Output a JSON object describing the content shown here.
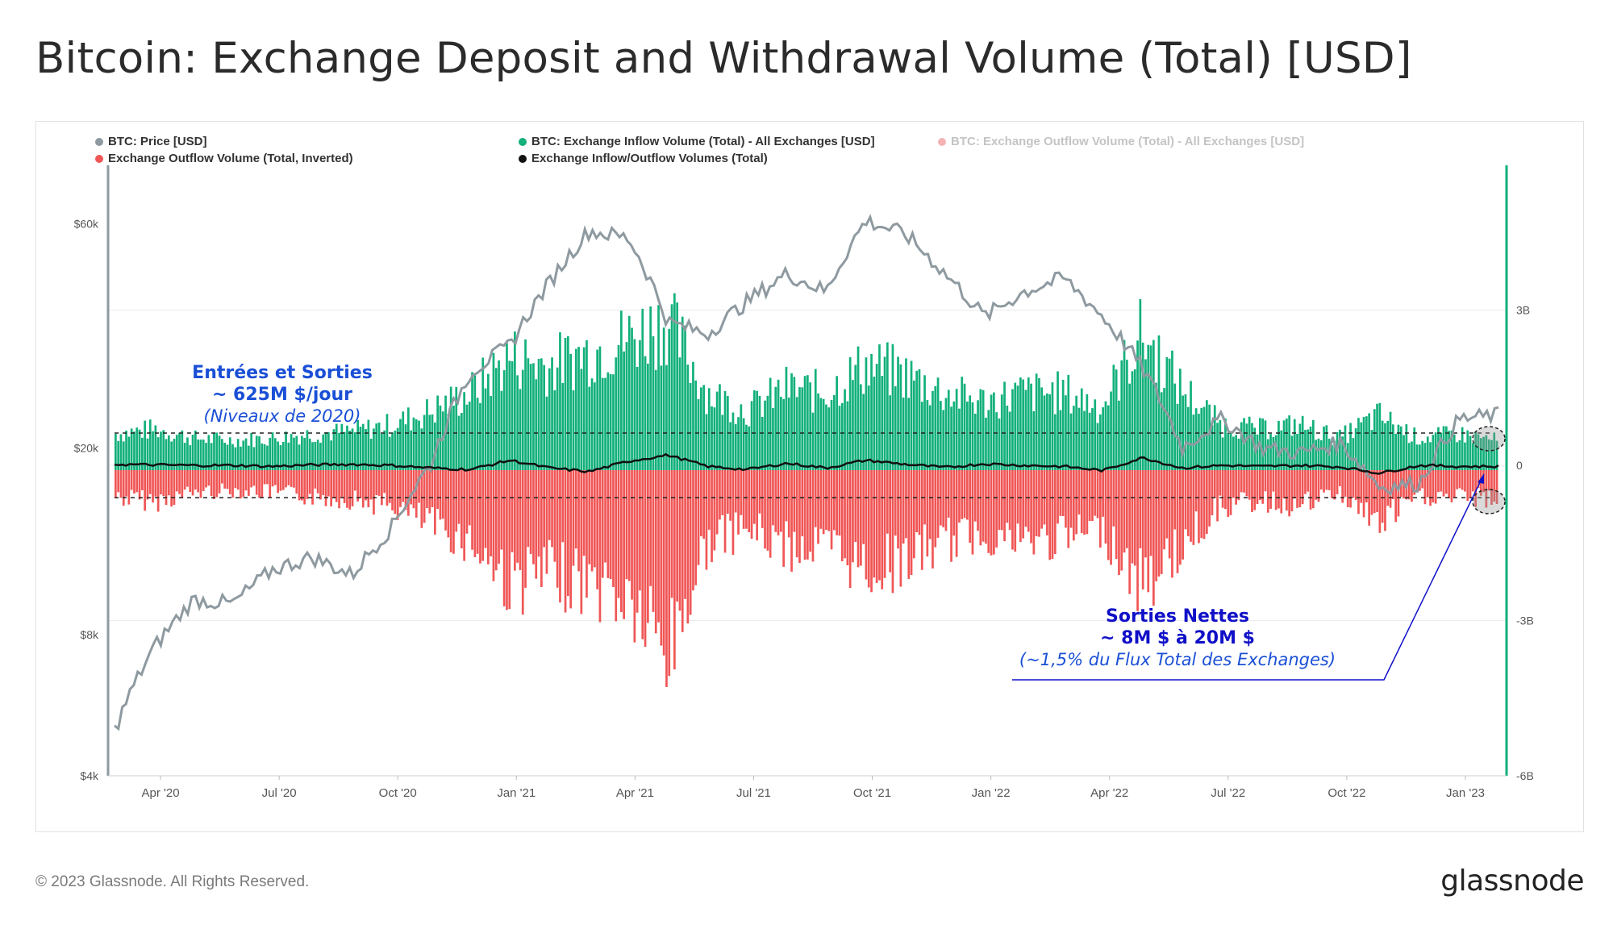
{
  "title": "Bitcoin: Exchange Deposit and Withdrawal Volume (Total) [USD]",
  "legend": [
    {
      "label": "BTC: Price [USD]",
      "color": "#8e9aa0",
      "faded": false
    },
    {
      "label": "BTC: Exchange Inflow Volume (Total) - All Exchanges [USD]",
      "color": "#12b07a",
      "faded": false
    },
    {
      "label": "BTC: Exchange Outflow Volume (Total) - All Exchanges [USD]",
      "color": "#f26d6d",
      "faded": true
    },
    {
      "label": "Exchange Outflow Volume (Total, Inverted)",
      "color": "#f05656",
      "faded": false
    },
    {
      "label": "Exchange Inflow/Outflow Volumes (Total)",
      "color": "#111111",
      "faded": false
    }
  ],
  "annotations": {
    "left": {
      "line1": "Entrées et Sorties",
      "line2": "~ 625M $/jour",
      "line3": "(Niveaux de 2020)"
    },
    "right": {
      "line1": "Sorties Nettes",
      "line2": "~ 8M $ à 20M $",
      "line3": "(~1,5% du Flux Total des Exchanges)"
    }
  },
  "footer": {
    "copyright": "© 2023 Glassnode. All Rights Reserved.",
    "brand": "glassnode"
  },
  "colors": {
    "price": "#8e9aa0",
    "inflow": "#12b07a",
    "outflow": "#f05656",
    "net": "#111111",
    "annotation": "#1a4fd6",
    "annotation_dark": "#1010c8",
    "right_axis": "#12b07a"
  },
  "chart_data": {
    "type": "bar",
    "title": "Bitcoin: Exchange Deposit and Withdrawal Volume (Total) [USD]",
    "x_ticks": [
      "Apr '20",
      "Jul '20",
      "Oct '20",
      "Jan '21",
      "Apr '21",
      "Jul '21",
      "Oct '21",
      "Jan '22",
      "Apr '22",
      "Jul '22",
      "Oct '22",
      "Jan '23"
    ],
    "left_axis": {
      "scale": "log",
      "ticks": [
        "$4k",
        "$8k",
        "$20k",
        "$60k"
      ],
      "tick_values": [
        4000,
        8000,
        20000,
        60000
      ],
      "range": [
        4000,
        80000
      ]
    },
    "right_axis": {
      "scale": "linear",
      "ticks": [
        "3B",
        "0",
        "-3B",
        "-6B"
      ],
      "tick_values": [
        3,
        0,
        -3,
        -6
      ],
      "range": [
        -6,
        5.8
      ],
      "unit": "B USD"
    },
    "reference_levels_B": [
      0.625,
      -0.625
    ],
    "series": [
      {
        "name": "BTC: Price [USD]",
        "axis": "left",
        "months": [
          "Mar '20",
          "Apr '20",
          "May '20",
          "Jun '20",
          "Jul '20",
          "Aug '20",
          "Sep '20",
          "Oct '20",
          "Nov '20",
          "Dec '20",
          "Jan '21",
          "Feb '21",
          "Mar '21",
          "Apr '21",
          "May '21",
          "Jun '21",
          "Jul '21",
          "Aug '21",
          "Sep '21",
          "Oct '21",
          "Nov '21",
          "Dec '21",
          "Jan '22",
          "Feb '22",
          "Mar '22",
          "Apr '22",
          "May '22",
          "Jun '22",
          "Jul '22",
          "Aug '22",
          "Sep '22",
          "Oct '22",
          "Nov '22",
          "Dec '22",
          "Jan '23",
          "Feb '23"
        ],
        "values": [
          5000,
          7500,
          9500,
          9300,
          11000,
          11700,
          10700,
          13500,
          18500,
          29000,
          33000,
          45000,
          58000,
          56000,
          37000,
          35000,
          41000,
          47000,
          43000,
          61000,
          57000,
          47000,
          38000,
          43000,
          46000,
          38000,
          29500,
          20000,
          23000,
          20000,
          19500,
          20500,
          16500,
          16800,
          23000,
          23500
        ]
      },
      {
        "name": "BTC: Exchange Inflow Volume (Total) - All Exchanges [USD]",
        "axis": "right",
        "unit": "B USD (approx. daily envelope)",
        "months": [
          "Mar '20",
          "Apr '20",
          "May '20",
          "Jun '20",
          "Jul '20",
          "Aug '20",
          "Sep '20",
          "Oct '20",
          "Nov '20",
          "Dec '20",
          "Jan '21",
          "Feb '21",
          "Mar '21",
          "Apr '21",
          "May '21",
          "Jun '21",
          "Jul '21",
          "Aug '21",
          "Sep '21",
          "Oct '21",
          "Nov '21",
          "Dec '21",
          "Jan '22",
          "Feb '22",
          "Mar '22",
          "Apr '22",
          "May '22",
          "Jun '22",
          "Jul '22",
          "Aug '22",
          "Sep '22",
          "Oct '22",
          "Nov '22",
          "Dec '22",
          "Jan '23",
          "Feb '23"
        ],
        "values": [
          0.7,
          0.8,
          0.6,
          0.55,
          0.6,
          0.7,
          0.75,
          0.9,
          1.2,
          1.6,
          2.4,
          2.2,
          2.5,
          2.8,
          3.2,
          1.6,
          1.2,
          1.7,
          1.6,
          2.2,
          2.0,
          1.6,
          1.4,
          1.6,
          1.6,
          1.3,
          2.9,
          1.7,
          0.9,
          0.8,
          0.9,
          0.6,
          1.1,
          0.6,
          0.7,
          0.55
        ]
      },
      {
        "name": "Exchange Outflow Volume (Total, Inverted)",
        "axis": "right",
        "unit": "B USD (approx. daily envelope)",
        "months": [
          "Mar '20",
          "Apr '20",
          "May '20",
          "Jun '20",
          "Jul '20",
          "Aug '20",
          "Sep '20",
          "Oct '20",
          "Nov '20",
          "Dec '20",
          "Jan '21",
          "Feb '21",
          "Mar '21",
          "Apr '21",
          "May '21",
          "Jun '21",
          "Jul '21",
          "Aug '21",
          "Sep '21",
          "Oct '21",
          "Nov '21",
          "Dec '21",
          "Jan '22",
          "Feb '22",
          "Mar '22",
          "Apr '22",
          "May '22",
          "Jun '22",
          "Jul '22",
          "Aug '22",
          "Sep '22",
          "Oct '22",
          "Nov '22",
          "Dec '22",
          "Jan '23",
          "Feb '23"
        ],
        "values": [
          -0.7,
          -0.8,
          -0.6,
          -0.55,
          -0.6,
          -0.7,
          -0.75,
          -0.9,
          -1.3,
          -1.7,
          -2.6,
          -2.4,
          -2.6,
          -3.0,
          -4.2,
          -1.7,
          -1.4,
          -1.8,
          -1.8,
          -2.3,
          -2.1,
          -1.7,
          -1.5,
          -1.7,
          -1.6,
          -1.4,
          -2.7,
          -1.8,
          -0.9,
          -0.8,
          -0.9,
          -0.6,
          -1.3,
          -0.7,
          -0.7,
          -0.75
        ]
      },
      {
        "name": "Exchange Inflow/Outflow Volumes (Total)",
        "axis": "right",
        "unit": "B USD (net, approx.)",
        "months": [
          "Mar '20",
          "Apr '20",
          "May '20",
          "Jun '20",
          "Jul '20",
          "Aug '20",
          "Sep '20",
          "Oct '20",
          "Nov '20",
          "Dec '20",
          "Jan '21",
          "Feb '21",
          "Mar '21",
          "Apr '21",
          "May '21",
          "Jun '21",
          "Jul '21",
          "Aug '21",
          "Sep '21",
          "Oct '21",
          "Nov '21",
          "Dec '21",
          "Jan '22",
          "Feb '22",
          "Mar '22",
          "Apr '22",
          "May '22",
          "Jun '22",
          "Jul '22",
          "Aug '22",
          "Sep '22",
          "Oct '22",
          "Nov '22",
          "Dec '22",
          "Jan '23",
          "Feb '23"
        ],
        "values": [
          0.02,
          0.01,
          0.0,
          0.0,
          -0.02,
          0.01,
          0.02,
          0.0,
          -0.05,
          -0.08,
          0.1,
          -0.05,
          -0.12,
          0.08,
          0.2,
          -0.02,
          -0.08,
          0.04,
          -0.05,
          0.1,
          0.02,
          -0.04,
          0.03,
          0.0,
          -0.02,
          -0.1,
          0.15,
          -0.05,
          0.0,
          -0.02,
          0.0,
          -0.03,
          -0.15,
          0.0,
          -0.02,
          -0.02
        ]
      }
    ]
  }
}
